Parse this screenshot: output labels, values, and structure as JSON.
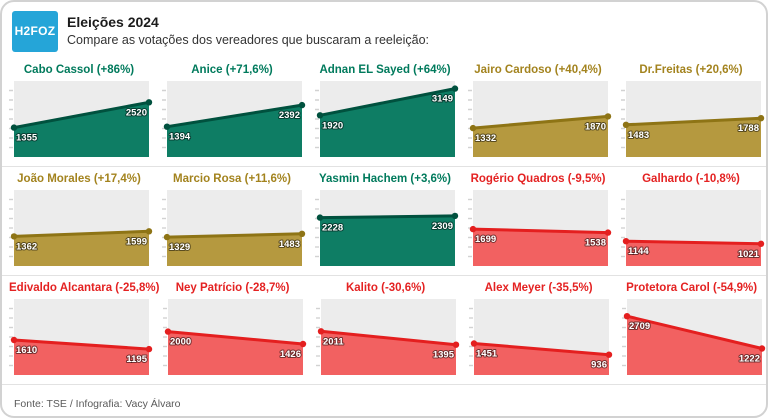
{
  "header": {
    "logo_text": "H2FOZ",
    "title": "Eleições 2024",
    "subtitle": "Compare as votações dos vereadores que buscaram a reeleição:"
  },
  "chart_data": {
    "type": "area",
    "title": "Eleições 2024",
    "subtitle": "Compare as votações dos vereadores que buscaram a reeleição:",
    "description": "15 mini slope/area charts, each with 2 data points (votes before vs. votes sought in reelection)",
    "ylim": [
      0,
      3500
    ],
    "grid": false,
    "legend": "none",
    "series": [
      {
        "name": "Cabo Cassol",
        "change": "+86%",
        "label": "Cabo Cassol (+86%)",
        "values": [
          1355,
          2520
        ],
        "color": "green"
      },
      {
        "name": "Anice",
        "change": "+71,6%",
        "label": "Anice (+71,6%)",
        "values": [
          1394,
          2392
        ],
        "color": "green"
      },
      {
        "name": "Adnan EL Sayed",
        "change": "+64%",
        "label": "Adnan EL Sayed (+64%)",
        "values": [
          1920,
          3149
        ],
        "color": "green"
      },
      {
        "name": "Jairo Cardoso",
        "change": "+40,4%",
        "label": "Jairo Cardoso (+40,4%)",
        "values": [
          1332,
          1870
        ],
        "color": "gold"
      },
      {
        "name": "Dr.Freitas",
        "change": "+20,6%",
        "label": "Dr.Freitas (+20,6%)",
        "values": [
          1483,
          1788
        ],
        "color": "gold"
      },
      {
        "name": "João Morales",
        "change": "+17,4%",
        "label": "João Morales (+17,4%)",
        "values": [
          1362,
          1599
        ],
        "color": "gold"
      },
      {
        "name": "Marcio Rosa",
        "change": "+11,6%",
        "label": "Marcio Rosa (+11,6%)",
        "values": [
          1329,
          1483
        ],
        "color": "gold"
      },
      {
        "name": "Yasmin Hachem",
        "change": "+3,6%",
        "label": "Yasmin Hachem (+3,6%)",
        "values": [
          2228,
          2309
        ],
        "color": "green"
      },
      {
        "name": "Rogério Quadros",
        "change": "-9,5%",
        "label": "Rogério Quadros (-9,5%)",
        "values": [
          1699,
          1538
        ],
        "color": "red"
      },
      {
        "name": "Galhardo",
        "change": "-10,8%",
        "label": "Galhardo (-10,8%)",
        "values": [
          1144,
          1021
        ],
        "color": "red"
      },
      {
        "name": "Edivaldo Alcantara",
        "change": "-25,8%",
        "label": "Edivaldo Alcantara (-25,8%)",
        "values": [
          1610,
          1195
        ],
        "color": "red"
      },
      {
        "name": "Ney Patrício",
        "change": "-28,7%",
        "label": "Ney Patrício (-28,7%)",
        "values": [
          2000,
          1426
        ],
        "color": "red"
      },
      {
        "name": "Kalito",
        "change": "-30,6%",
        "label": "Kalito (-30,6%)",
        "values": [
          2011,
          1395
        ],
        "color": "red"
      },
      {
        "name": "Alex Meyer",
        "change": "-35,5%",
        "label": "Alex Meyer (-35,5%)",
        "values": [
          1451,
          936
        ],
        "color": "red"
      },
      {
        "name": "Protetora Carol",
        "change": "-54,9%",
        "label": "Protetora Carol (-54,9%)",
        "values": [
          2709,
          1222
        ],
        "color": "red"
      }
    ]
  },
  "colors": {
    "green_fill": "#0e7d64",
    "green_line": "#00513e",
    "green_title": "#007a5c",
    "gold_fill": "#b5993f",
    "gold_line": "#8e7415",
    "gold_title": "#a3831e",
    "red_fill": "#f26161",
    "red_line": "#e41f1f",
    "red_title": "#e42222",
    "logo_bg": "#25a5d8",
    "plot_bg": "#ececec",
    "tick": "#d2d2d2"
  },
  "footer": {
    "text": "Fonte: TSE / Infografia: Vacy Álvaro"
  }
}
